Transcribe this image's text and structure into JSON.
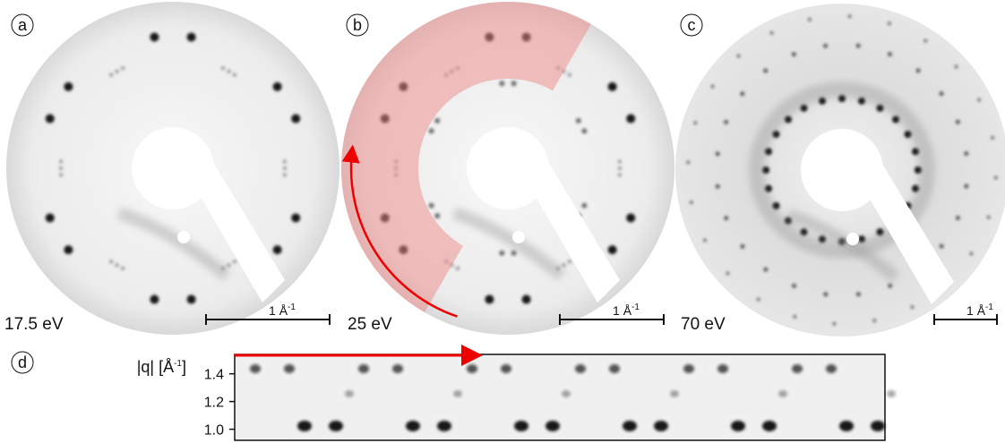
{
  "panels": [
    {
      "label": "a",
      "energy": "17.5 eV",
      "scale_label": "1 Å",
      "scale_exponent": "-1"
    },
    {
      "label": "b",
      "energy": "25 eV",
      "scale_label": "1 Å",
      "scale_exponent": "-1"
    },
    {
      "label": "c",
      "energy": "70 eV",
      "scale_label": "1 Å",
      "scale_exponent": "-1"
    }
  ],
  "profile": {
    "label": "d",
    "axis_label": "|q| [Å",
    "axis_exponent": "-1",
    "axis_close": "]",
    "ylim": [
      0.92,
      1.54
    ],
    "yticks": [
      {
        "value": 1.0,
        "label": "1.0"
      },
      {
        "value": 1.2,
        "label": "1.2"
      },
      {
        "value": 1.4,
        "label": "1.4"
      }
    ]
  }
}
